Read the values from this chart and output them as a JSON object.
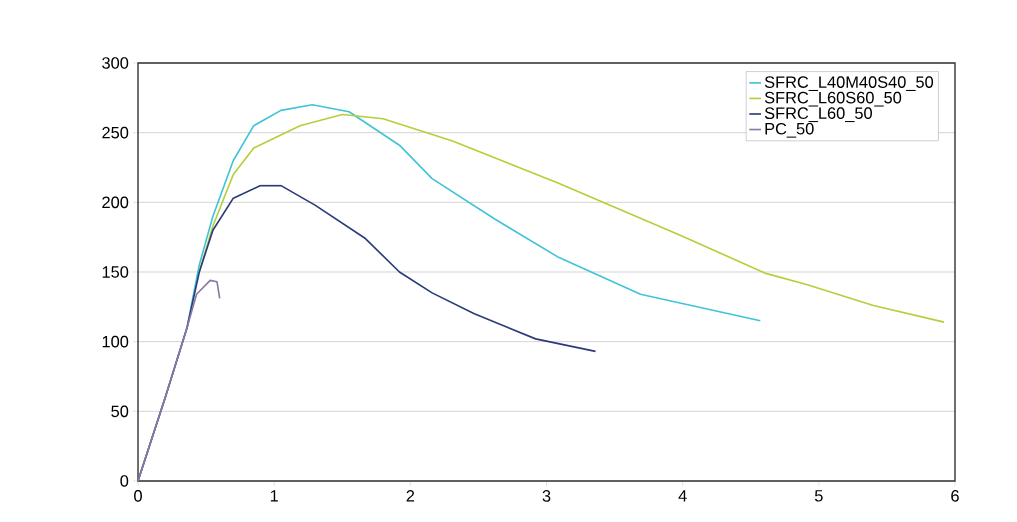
{
  "chart_data": {
    "type": "line",
    "xlim": [
      0,
      6
    ],
    "ylim": [
      0,
      300
    ],
    "xticks": [
      0,
      1,
      2,
      3,
      4,
      5,
      6
    ],
    "yticks": [
      0,
      50,
      100,
      150,
      200,
      250,
      300
    ],
    "grid": "y",
    "legend": "top right",
    "marker": "none",
    "line_style": "solid",
    "series": [
      {
        "name": "SFRC_L40M40S40_50",
        "color": "#3fc4d8",
        "x": [
          0,
          0.2,
          0.36,
          0.45,
          0.55,
          0.7,
          0.85,
          1.05,
          1.28,
          1.55,
          1.92,
          2.16,
          2.62,
          3.08,
          3.69,
          4.57
        ],
        "values": [
          0,
          60,
          110,
          155,
          190,
          230,
          255,
          266,
          270,
          265,
          241,
          217,
          188,
          161,
          134,
          115
        ]
      },
      {
        "name": "SFRC_L60S60_50",
        "color": "#b5cf3a",
        "x": [
          0.45,
          0.55,
          0.7,
          0.85,
          1.19,
          1.5,
          1.8,
          2.31,
          3.08,
          3.99,
          4.61,
          4.91,
          5.4,
          5.92
        ],
        "values": [
          150,
          183,
          220,
          239,
          255,
          263,
          260,
          244,
          214,
          176,
          149,
          141,
          126,
          114
        ]
      },
      {
        "name": "SFRC_L60_50",
        "color": "#2b3a7a",
        "x": [
          0,
          0.2,
          0.36,
          0.45,
          0.55,
          0.7,
          0.9,
          1.05,
          1.3,
          1.67,
          1.92,
          2.16,
          2.47,
          2.92,
          3.36
        ],
        "values": [
          0,
          60,
          110,
          150,
          180,
          203,
          212,
          212,
          198,
          174,
          150,
          135,
          120,
          102,
          93
        ]
      },
      {
        "name": "PC_50",
        "color": "#8a7aa0",
        "x": [
          0,
          0.2,
          0.36,
          0.43,
          0.53,
          0.58,
          0.6
        ],
        "values": [
          0,
          60,
          110,
          134,
          144,
          143,
          131
        ]
      }
    ]
  }
}
